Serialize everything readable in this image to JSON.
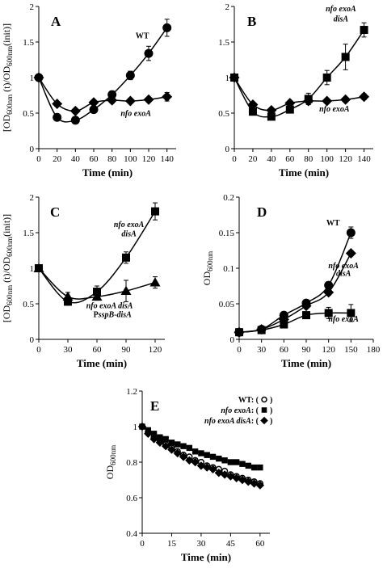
{
  "chart_data": [
    {
      "id": "A",
      "type": "line",
      "letter": "A",
      "ylabel": {
        "pre": "[OD",
        "sub1": "600nm",
        "mid": " (t)/OD",
        "sub2": "600nm",
        "post": "(init)]"
      },
      "xlabel": "Time (min)",
      "xlim": [
        0,
        150
      ],
      "ylim": [
        0,
        2
      ],
      "xticks": [
        0,
        20,
        40,
        60,
        80,
        100,
        120,
        140
      ],
      "yticks": [
        0,
        0.5,
        1,
        1.5,
        2
      ],
      "xtick_labels": [
        "0",
        "20",
        "40",
        "60",
        "80",
        "100",
        "120",
        "140"
      ],
      "ytick_labels": [
        "0",
        "0.5",
        "1",
        "1.5",
        "2"
      ],
      "series": [
        {
          "name": "WT",
          "marker": "circle-filled",
          "x": [
            0,
            20,
            40,
            60,
            80,
            100,
            120,
            140
          ],
          "y": [
            1.0,
            0.44,
            0.4,
            0.55,
            0.76,
            1.03,
            1.34,
            1.7
          ],
          "err": [
            0.03,
            0.03,
            0.03,
            0.03,
            0.05,
            0.06,
            0.1,
            0.12
          ]
        },
        {
          "name": "nfo exoA",
          "marker": "diamond",
          "x": [
            0,
            20,
            40,
            60,
            80,
            100,
            120,
            140
          ],
          "y": [
            1.0,
            0.63,
            0.53,
            0.65,
            0.68,
            0.67,
            0.69,
            0.73
          ],
          "err": [
            0.02,
            0.03,
            0.03,
            0.03,
            0.04,
            0.03,
            0.03,
            0.06
          ]
        }
      ],
      "annotations": [
        {
          "series": "WT",
          "parts": [
            [
              "WT",
              "n"
            ]
          ],
          "at": [
            113,
            1.55
          ]
        },
        {
          "series": "nfo exoA",
          "parts": [
            [
              "nfo exoA",
              "i"
            ]
          ],
          "at": [
            106,
            0.46
          ]
        }
      ]
    },
    {
      "id": "B",
      "type": "line",
      "letter": "B",
      "ylabel": null,
      "xlabel": "Time (min)",
      "xlim": [
        0,
        150
      ],
      "ylim": [
        0,
        2
      ],
      "xticks": [
        0,
        20,
        40,
        60,
        80,
        100,
        120,
        140
      ],
      "yticks": [
        0,
        0.5,
        1,
        1.5,
        2
      ],
      "xtick_labels": [
        "0",
        "20",
        "40",
        "60",
        "80",
        "100",
        "120",
        "140"
      ],
      "ytick_labels": [
        "0",
        "0.5",
        "1",
        "1.5",
        "2"
      ],
      "series": [
        {
          "name": "nfo exoA disA",
          "marker": "square",
          "x": [
            0,
            20,
            40,
            60,
            80,
            100,
            120,
            140
          ],
          "y": [
            1.0,
            0.52,
            0.45,
            0.55,
            0.7,
            1.0,
            1.29,
            1.67
          ],
          "err": [
            0.02,
            0.04,
            0.04,
            0.04,
            0.08,
            0.1,
            0.18,
            0.1
          ]
        },
        {
          "name": "nfo exoA",
          "marker": "diamond",
          "x": [
            0,
            20,
            40,
            60,
            80,
            100,
            120,
            140
          ],
          "y": [
            1.0,
            0.62,
            0.54,
            0.64,
            0.67,
            0.67,
            0.69,
            0.73
          ],
          "err": [
            0.02,
            0.03,
            0.03,
            0.03,
            0.03,
            0.03,
            0.03,
            0.04
          ]
        }
      ],
      "annotations": [
        {
          "series": "nfo exoA disA",
          "parts": [
            [
              "nfo exoA",
              "i"
            ]
          ],
          "at": [
            115,
            1.93
          ]
        },
        {
          "series": "nfo exoA disA",
          "parts": [
            [
              "disA",
              "i"
            ]
          ],
          "at": [
            115,
            1.79
          ]
        },
        {
          "series": "nfo exoA",
          "parts": [
            [
              "nfo exoA",
              "i"
            ]
          ],
          "at": [
            108,
            0.52
          ]
        }
      ]
    },
    {
      "id": "C",
      "type": "line",
      "letter": "C",
      "ylabel": {
        "pre": "[OD",
        "sub1": "600nm",
        "mid": " (t)/OD",
        "sub2": "600nm",
        "post": "(init)]"
      },
      "xlabel": "Time (min)",
      "xlim": [
        0,
        130
      ],
      "ylim": [
        0,
        2
      ],
      "xticks": [
        0,
        30,
        60,
        90,
        120
      ],
      "yticks": [
        0,
        0.5,
        1,
        1.5,
        2
      ],
      "xtick_labels": [
        "0",
        "30",
        "60",
        "90",
        "120"
      ],
      "ytick_labels": [
        "0",
        "0.5",
        "1",
        "1.5",
        "2"
      ],
      "series": [
        {
          "name": "nfo exoA disA",
          "marker": "square",
          "x": [
            0,
            30,
            60,
            90,
            120
          ],
          "y": [
            1.0,
            0.53,
            0.67,
            1.15,
            1.8
          ],
          "err": [
            0.02,
            0.05,
            0.08,
            0.08,
            0.12
          ]
        },
        {
          "name": "nfo exoA disA PsspB-disA",
          "marker": "triangle",
          "x": [
            0,
            30,
            60,
            90,
            120
          ],
          "y": [
            1.0,
            0.6,
            0.6,
            0.68,
            0.8
          ],
          "err": [
            0.02,
            0.06,
            0.05,
            0.15,
            0.08
          ]
        }
      ],
      "annotations": [
        {
          "series": "nfo exoA disA",
          "parts": [
            [
              "nfo exoA",
              "i"
            ]
          ],
          "at": [
            93,
            1.58
          ]
        },
        {
          "series": "nfo exoA disA",
          "parts": [
            [
              "disA",
              "i"
            ]
          ],
          "at": [
            93,
            1.45
          ]
        },
        {
          "series": "nfo exoA disA PsspB-disA",
          "parts": [
            [
              "nfo exoA disA",
              "i"
            ]
          ],
          "at": [
            73,
            0.44
          ]
        },
        {
          "series": "nfo exoA disA PsspB-disA",
          "parts": [
            [
              "P",
              "n"
            ],
            [
              "sspB",
              "i"
            ],
            [
              "-",
              "n"
            ],
            [
              "disA",
              "i"
            ]
          ],
          "at": [
            76,
            0.31
          ]
        }
      ]
    },
    {
      "id": "D",
      "type": "line",
      "letter": "D",
      "ylabel": {
        "pre": "OD",
        "sub1": "600nm",
        "mid": "",
        "sub2": "",
        "post": ""
      },
      "xlabel": "Time (min)",
      "xlim": [
        0,
        180
      ],
      "ylim": [
        0,
        0.2
      ],
      "xticks": [
        0,
        30,
        60,
        90,
        120,
        150,
        180
      ],
      "yticks": [
        0,
        0.05,
        0.1,
        0.15,
        0.2
      ],
      "xtick_labels": [
        "0",
        "30",
        "60",
        "90",
        "120",
        "150",
        "180"
      ],
      "ytick_labels": [
        "0",
        "0.05",
        "0.1",
        "0.15",
        "0.2"
      ],
      "series": [
        {
          "name": "WT",
          "marker": "circle-filled",
          "x": [
            0,
            30,
            60,
            90,
            120,
            150
          ],
          "y": [
            0.01,
            0.014,
            0.034,
            0.051,
            0.076,
            0.15
          ],
          "err": [
            0.001,
            0.002,
            0.003,
            0.003,
            0.005,
            0.008
          ]
        },
        {
          "name": "nfo exoA disA",
          "marker": "diamond",
          "x": [
            0,
            30,
            60,
            90,
            120,
            150
          ],
          "y": [
            0.01,
            0.014,
            0.028,
            0.047,
            0.066,
            0.121
          ],
          "err": [
            0.001,
            0.002,
            0.003,
            0.003,
            0.004,
            0.004
          ]
        },
        {
          "name": "nfo exoA",
          "marker": "square",
          "x": [
            0,
            30,
            60,
            90,
            120,
            150
          ],
          "y": [
            0.01,
            0.013,
            0.021,
            0.034,
            0.037,
            0.037
          ],
          "err": [
            0.001,
            0.002,
            0.002,
            0.003,
            0.008,
            0.012
          ]
        }
      ],
      "annotations": [
        {
          "series": "WT",
          "parts": [
            [
              "WT",
              "n"
            ]
          ],
          "at": [
            126,
            0.16
          ]
        },
        {
          "series": "nfo exoA disA",
          "parts": [
            [
              "nfo exoA",
              "i"
            ]
          ],
          "at": [
            140,
            0.1
          ]
        },
        {
          "series": "nfo exoA disA",
          "parts": [
            [
              "disA",
              "i"
            ]
          ],
          "at": [
            140,
            0.089
          ]
        },
        {
          "series": "nfo exoA",
          "parts": [
            [
              "nfo exoA",
              "i"
            ]
          ],
          "at": [
            140,
            0.025
          ]
        }
      ]
    },
    {
      "id": "E",
      "type": "scatter",
      "letter": "E",
      "ylabel": {
        "pre": "OD",
        "sub1": "600nm",
        "mid": "",
        "sub2": "",
        "post": ""
      },
      "xlabel": "Time (min)",
      "xlim": [
        0,
        65
      ],
      "ylim": [
        0.4,
        1.2
      ],
      "xticks": [
        0,
        15,
        30,
        45,
        60
      ],
      "yticks": [
        0.4,
        0.6,
        0.8,
        1.0,
        1.2
      ],
      "xtick_labels": [
        "0",
        "15",
        "30",
        "45",
        "60"
      ],
      "ytick_labels": [
        "0.4",
        "0.6",
        "0.8",
        "1",
        "1.2"
      ],
      "series": [
        {
          "name": "WT",
          "marker": "circle-open",
          "x": [
            0,
            3,
            6,
            9,
            12,
            15,
            18,
            21,
            24,
            27,
            30,
            33,
            36,
            39,
            42,
            45,
            48,
            51,
            54,
            57,
            60
          ],
          "y": [
            1.0,
            0.97,
            0.94,
            0.92,
            0.9,
            0.88,
            0.86,
            0.84,
            0.83,
            0.81,
            0.8,
            0.78,
            0.77,
            0.76,
            0.75,
            0.73,
            0.72,
            0.71,
            0.7,
            0.69,
            0.68
          ],
          "err": []
        },
        {
          "name": "nfo exoA",
          "marker": "square",
          "x": [
            0,
            3,
            6,
            9,
            12,
            15,
            18,
            21,
            24,
            27,
            30,
            33,
            36,
            39,
            42,
            45,
            48,
            51,
            54,
            57,
            60
          ],
          "y": [
            1.0,
            0.98,
            0.96,
            0.94,
            0.93,
            0.91,
            0.9,
            0.89,
            0.88,
            0.86,
            0.85,
            0.84,
            0.83,
            0.82,
            0.81,
            0.8,
            0.8,
            0.79,
            0.78,
            0.77,
            0.77
          ],
          "err": []
        },
        {
          "name": "nfo exoA disA",
          "marker": "diamond",
          "x": [
            0,
            3,
            6,
            9,
            12,
            15,
            18,
            21,
            24,
            27,
            30,
            33,
            36,
            39,
            42,
            45,
            48,
            51,
            54,
            57,
            60
          ],
          "y": [
            1.0,
            0.96,
            0.93,
            0.91,
            0.89,
            0.87,
            0.85,
            0.83,
            0.81,
            0.8,
            0.78,
            0.77,
            0.76,
            0.74,
            0.73,
            0.72,
            0.71,
            0.7,
            0.69,
            0.68,
            0.67
          ],
          "err": []
        }
      ],
      "legend": [
        {
          "series": "WT",
          "parts": [
            [
              "WT",
              "n"
            ],
            [
              ": (",
              "n"
            ]
          ],
          "marker": "circle-open"
        },
        {
          "series": "nfo exoA",
          "parts": [
            [
              "nfo exoA",
              "i"
            ],
            [
              ": (",
              "n"
            ]
          ],
          "marker": "square"
        },
        {
          "series": "nfo exoA disA",
          "parts": [
            [
              "nfo exoA disA",
              "i"
            ],
            [
              ": (",
              "n"
            ]
          ],
          "marker": "diamond"
        }
      ],
      "legend_close": ")",
      "legend_position": "top-right"
    }
  ]
}
